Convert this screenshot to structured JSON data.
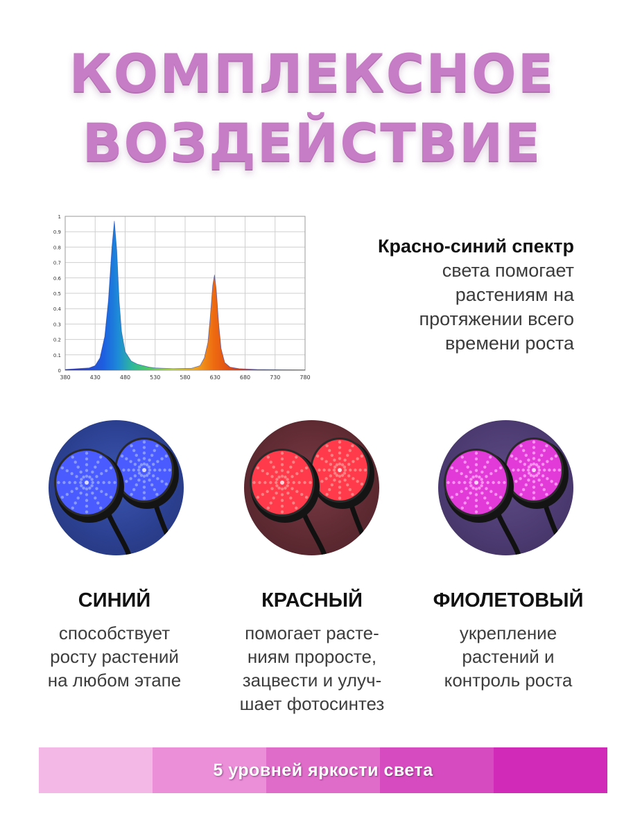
{
  "headline": {
    "line1": "КОМПЛЕКСНОЕ",
    "line2": "ВОЗДЕЙСТВИЕ"
  },
  "chart_data": {
    "type": "area",
    "title": "",
    "xlabel": "",
    "ylabel": "",
    "x_ticks": [
      380,
      430,
      480,
      530,
      580,
      630,
      680,
      730,
      780
    ],
    "y_ticks": [
      "0",
      "0.1",
      "0.2",
      "0.3",
      "0.4",
      "0.5",
      "0.6",
      "0.7",
      "0.8",
      "0.9",
      "1"
    ],
    "xlim": [
      380,
      780
    ],
    "ylim": [
      0,
      1
    ],
    "grid": true,
    "series": [
      {
        "color": "#2e7bd6",
        "x": [
          380,
          400,
          420,
          430,
          438,
          446,
          452,
          458,
          462,
          466,
          470,
          474,
          480,
          490,
          500,
          510,
          520,
          530,
          560,
          590,
          605,
          612,
          618,
          622,
          626,
          629,
          632,
          636,
          640,
          646,
          655,
          670,
          700,
          740,
          780
        ],
        "y": [
          0.005,
          0.01,
          0.015,
          0.03,
          0.08,
          0.22,
          0.45,
          0.8,
          0.97,
          0.78,
          0.45,
          0.25,
          0.12,
          0.06,
          0.04,
          0.03,
          0.02,
          0.015,
          0.01,
          0.012,
          0.03,
          0.08,
          0.18,
          0.35,
          0.55,
          0.62,
          0.52,
          0.3,
          0.14,
          0.05,
          0.02,
          0.01,
          0.005,
          0.003,
          0.002
        ]
      }
    ]
  },
  "spectrum_caption": {
    "bold": "Красно-синий спектр",
    "text": "света помогает\nрастениям на\nпротяжении всего\nвремени роста"
  },
  "columns": [
    {
      "title": "СИНИЙ",
      "text": "способствует\nросту растений\nна любом этапе"
    },
    {
      "title": "КРАСНЫЙ",
      "text": "помогает расте-\nниям проросте,\nзацвести и улуч-\nшает фотосинтез"
    },
    {
      "title": "ФИОЛЕТОВЫЙ",
      "text": "укрепление\nрастений и\nконтроль роста"
    }
  ],
  "lamps": [
    {
      "icon": "blue-led-lamp-icon",
      "led_color": "#4a5cff",
      "glow": "#8fa0ff"
    },
    {
      "icon": "red-led-lamp-icon",
      "led_color": "#ff3a4a",
      "glow": "#ff8a8a"
    },
    {
      "icon": "violet-led-lamp-icon",
      "led_color": "#e23ad9",
      "glow": "#ff9cf2"
    }
  ],
  "brightness_bar": {
    "label": "5 уровней яркости света",
    "levels": [
      "#f3b8e6",
      "#ea8fd8",
      "#e06cc9",
      "#d64bbf",
      "#d22ab8"
    ]
  },
  "colors": {
    "headline": "#c77dc6"
  }
}
